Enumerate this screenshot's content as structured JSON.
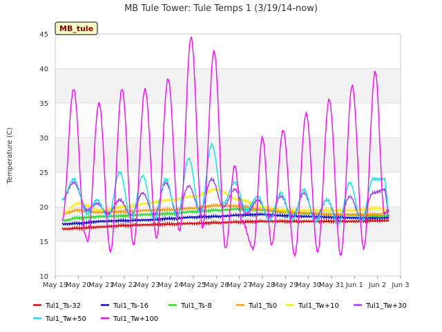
{
  "chart_data": {
    "type": "line",
    "title": "MB Tule Tower: Tule Temps 1 (3/19/14-now)",
    "badge": "MB_tule",
    "xlabel": "",
    "ylabel": "Temperature (C)",
    "ylim": [
      10,
      45
    ],
    "yticks": [
      "10",
      "15",
      "20",
      "25",
      "30",
      "35",
      "40",
      "45"
    ],
    "xlim": [
      0,
      15
    ],
    "xtick_labels": [
      "May 19",
      "May 20",
      "May 21",
      "May 22",
      "May 23",
      "May 24",
      "May 25",
      "May 26",
      "May 27",
      "May 28",
      "May 29",
      "May 30",
      "May 31",
      "Jun 1",
      "Jun 2",
      "Jun 3"
    ],
    "grid": true,
    "bands": "alternating-gray",
    "legend_position": "bottom",
    "series": [
      {
        "name": "Tul1_Ts-32",
        "color": "#dd0000",
        "x": [
          0.3,
          1,
          2,
          3,
          4,
          5,
          6,
          7,
          8,
          9,
          10,
          11,
          12,
          13,
          14,
          14.5
        ],
        "y": [
          16.8,
          16.9,
          17.1,
          17.3,
          17.4,
          17.5,
          17.6,
          17.7,
          17.8,
          17.9,
          17.9,
          17.9,
          17.9,
          17.9,
          18.0,
          18.0
        ]
      },
      {
        "name": "Tul1_Ts-16",
        "color": "#0000cc",
        "x": [
          0.3,
          1,
          2,
          3,
          4,
          5,
          6,
          7,
          8,
          9,
          10,
          11,
          12,
          13,
          14,
          14.5
        ],
        "y": [
          17.5,
          17.6,
          17.9,
          18.0,
          18.1,
          18.3,
          18.5,
          18.6,
          18.8,
          18.9,
          18.7,
          18.6,
          18.5,
          18.4,
          18.4,
          18.4
        ]
      },
      {
        "name": "Tul1_Ts-8",
        "color": "#22dd22",
        "x": [
          0.3,
          1,
          2,
          3,
          4,
          5,
          6,
          7,
          8,
          9,
          10,
          11,
          12,
          13,
          14,
          14.5
        ],
        "y": [
          18.0,
          18.4,
          18.6,
          18.7,
          18.9,
          19.0,
          19.3,
          19.5,
          19.7,
          19.5,
          19.2,
          19.0,
          18.9,
          18.8,
          18.7,
          18.7
        ]
      },
      {
        "name": "Tul1_Ts0",
        "color": "#ff9900",
        "x": [
          0.3,
          1,
          2,
          3,
          4,
          5,
          6,
          7,
          8,
          9,
          10,
          11,
          12,
          13,
          14,
          14.5
        ],
        "y": [
          19.0,
          19.5,
          19.2,
          19.3,
          19.5,
          19.6,
          19.8,
          20.2,
          20.1,
          19.6,
          19.3,
          19.1,
          18.9,
          18.9,
          18.9,
          19.2
        ]
      },
      {
        "name": "Tul1_Tw+10",
        "color": "#ffee00",
        "x": [
          0.3,
          1,
          2,
          3,
          4,
          5,
          6,
          7,
          8,
          9,
          10,
          11,
          12,
          13,
          14,
          14.5
        ],
        "y": [
          19.0,
          20.5,
          19.5,
          20.0,
          20.5,
          21.0,
          21.5,
          22.5,
          21.0,
          20.0,
          19.5,
          19.5,
          19.5,
          19.5,
          19.8,
          19.5
        ]
      },
      {
        "name": "Tul1_Tw+30",
        "color": "#9933ff",
        "x": [
          0.3,
          0.8,
          1.4,
          1.8,
          2.3,
          2.8,
          3.3,
          3.8,
          4.3,
          4.8,
          5.3,
          5.8,
          6.3,
          6.8,
          7.3,
          7.8,
          8.3,
          8.8,
          9.3,
          9.8,
          10.3,
          10.8,
          11.3,
          11.8,
          12.3,
          12.8,
          13.3,
          13.8,
          14.3,
          14.5
        ],
        "y": [
          21.0,
          23.5,
          19.5,
          20.5,
          19.0,
          21.0,
          18.8,
          22.0,
          18.8,
          23.5,
          19.0,
          23.0,
          19.5,
          24.0,
          20.0,
          22.5,
          19.0,
          21.0,
          18.5,
          21.5,
          18.5,
          22.0,
          18.3,
          21.0,
          18.0,
          21.5,
          18.2,
          22.0,
          22.5,
          18.5
        ]
      },
      {
        "name": "Tul1_Tw+50",
        "color": "#00e5ee",
        "x": [
          0.3,
          0.8,
          1.4,
          1.8,
          2.3,
          2.8,
          3.3,
          3.8,
          4.3,
          4.8,
          5.3,
          5.8,
          6.3,
          6.8,
          7.3,
          7.8,
          8.3,
          8.8,
          9.3,
          9.8,
          10.3,
          10.8,
          11.3,
          11.8,
          12.3,
          12.8,
          13.3,
          13.8,
          14.3,
          14.5
        ],
        "y": [
          21.0,
          24.0,
          19.0,
          21.0,
          18.5,
          25.0,
          18.3,
          24.5,
          18.2,
          24.0,
          18.5,
          27.0,
          19.0,
          29.0,
          20.5,
          23.5,
          19.5,
          21.5,
          18.0,
          22.0,
          18.0,
          22.5,
          17.8,
          21.0,
          17.5,
          23.5,
          17.8,
          24.0,
          24.0,
          19.0
        ]
      },
      {
        "name": "Tul1_Tw+100",
        "color": "#ff00ff",
        "x": [
          0.3,
          0.8,
          1.3,
          1.4,
          1.9,
          2.4,
          2.9,
          3.4,
          3.9,
          4.4,
          4.9,
          5.4,
          5.9,
          6.4,
          6.9,
          7.4,
          7.8,
          8.1,
          8.6,
          9.0,
          9.4,
          9.9,
          10.4,
          10.9,
          11.4,
          11.9,
          12.4,
          12.9,
          13.4,
          13.9,
          14.3,
          14.5
        ],
        "y": [
          18.0,
          37.0,
          16.0,
          15.0,
          35.0,
          13.5,
          37.0,
          14.5,
          37.0,
          15.5,
          38.5,
          16.5,
          44.5,
          17.0,
          42.5,
          14.0,
          26.0,
          18.0,
          14.0,
          30.0,
          14.5,
          31.0,
          13.0,
          33.5,
          13.5,
          35.5,
          13.0,
          37.5,
          14.0,
          39.5,
          19.0,
          19.5
        ]
      }
    ]
  }
}
